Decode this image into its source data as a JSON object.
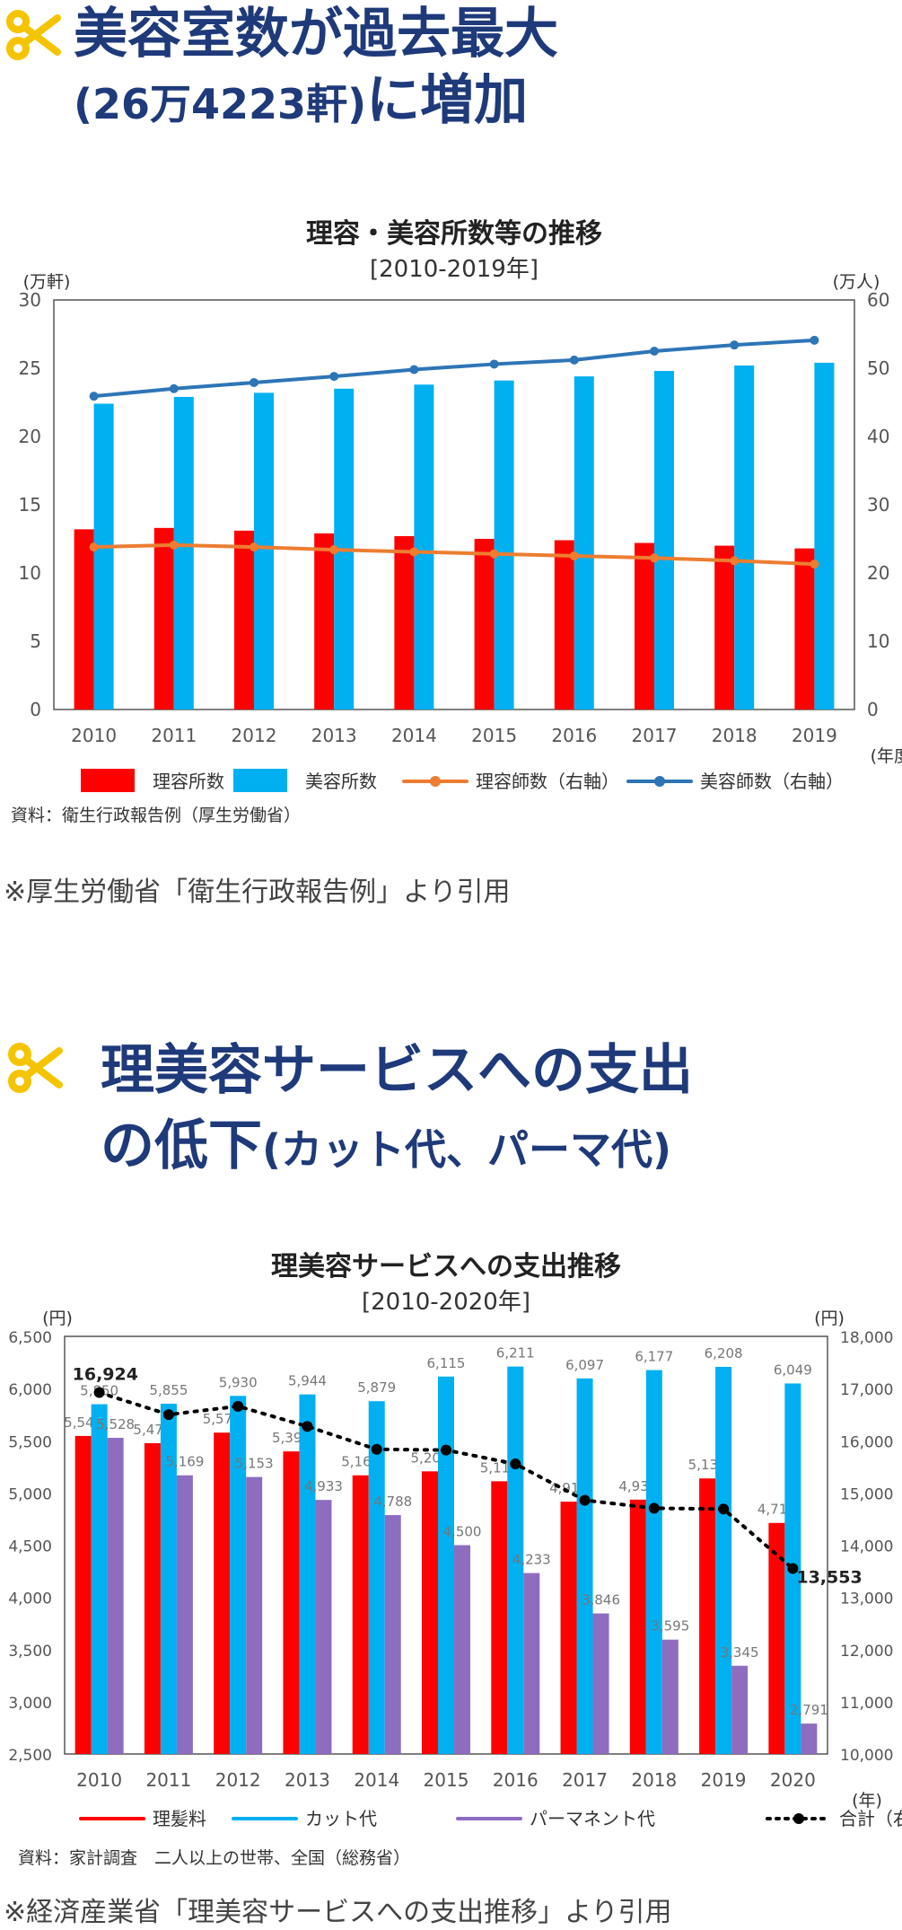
{
  "section1": {
    "title_line1": "美容室数が過去最大",
    "title_line2_paren": "(26万4223軒)",
    "title_line2_rest": "に増加",
    "note": "※厚生労働省「衛生行政報告例」より引用"
  },
  "section2": {
    "title_line1": "理美容サービスへの支出",
    "title_line2_main": "の低下",
    "title_line2_paren": "(カット代、パーマ代)",
    "note": "※経済産業省「理美容サービスへの支出推移」より引用"
  },
  "colors": {
    "heading": "#1f3a7a",
    "scissors": "#f5c400",
    "red": "#ff0000",
    "cyan": "#00b0f0",
    "purple": "#8e6cc0",
    "orange": "#ed7d31",
    "blue": "#2e75b6"
  },
  "chart_data": [
    {
      "type": "bar",
      "title": "理容・美容所数等の推移",
      "subtitle": "[2010-2019年]",
      "left_axis_unit": "(万軒)",
      "right_axis_unit": "(万人)",
      "x_unit": "(年度)",
      "categories": [
        "2010",
        "2011",
        "2012",
        "2013",
        "2014",
        "2015",
        "2016",
        "2017",
        "2018",
        "2019"
      ],
      "ylim_left": [
        0,
        30
      ],
      "ylim_right": [
        0,
        60
      ],
      "yticks_left": [
        "0",
        "5",
        "10",
        "15",
        "20",
        "25",
        "30"
      ],
      "yticks_right": [
        "0",
        "10",
        "20",
        "30",
        "40",
        "50",
        "60"
      ],
      "series": [
        {
          "name": "理容所数",
          "kind": "bar",
          "axis": "left",
          "color": "#ff0000",
          "values": [
            13.2,
            13.3,
            13.1,
            12.9,
            12.7,
            12.5,
            12.4,
            12.2,
            12.0,
            11.8
          ]
        },
        {
          "name": "美容所数",
          "kind": "bar",
          "axis": "left",
          "color": "#00b0f0",
          "values": [
            22.4,
            22.9,
            23.2,
            23.5,
            23.8,
            24.1,
            24.4,
            24.8,
            25.2,
            25.4
          ]
        },
        {
          "name": "理容師数（右軸）",
          "kind": "line",
          "axis": "right",
          "color": "#ed7d31",
          "values": [
            23.8,
            24.1,
            23.8,
            23.4,
            23.1,
            22.8,
            22.5,
            22.2,
            21.8,
            21.3
          ]
        },
        {
          "name": "美容師数（右軸）",
          "kind": "line",
          "axis": "right",
          "color": "#2e75b6",
          "values": [
            45.9,
            47.0,
            47.9,
            48.8,
            49.8,
            50.6,
            51.2,
            52.5,
            53.4,
            54.1
          ]
        }
      ],
      "source": "資料：衛生行政報告例（厚生労働省）"
    },
    {
      "type": "bar",
      "title": "理美容サービスへの支出推移",
      "subtitle": "[2010-2020年]",
      "left_axis_unit": "(円)",
      "right_axis_unit": "(円)",
      "x_unit": "(年)",
      "categories": [
        "2010",
        "2011",
        "2012",
        "2013",
        "2014",
        "2015",
        "2016",
        "2017",
        "2018",
        "2019",
        "2020"
      ],
      "ylim_left": [
        2500,
        6500
      ],
      "ylim_right": [
        10000,
        18000
      ],
      "yticks_left": [
        "2,500",
        "3,000",
        "3,500",
        "4,000",
        "4,500",
        "5,000",
        "5,500",
        "6,000",
        "6,500"
      ],
      "yticks_right": [
        "10,000",
        "11,000",
        "12,000",
        "13,000",
        "14,000",
        "15,000",
        "16,000",
        "17,000",
        "18,000"
      ],
      "series": [
        {
          "name": "理髪料",
          "kind": "bar",
          "axis": "left",
          "color": "#ff0000",
          "values": [
            5546,
            5477,
            5578,
            5398,
            5169,
            5207,
            5112,
            4917,
            4936,
            5139,
            4713
          ],
          "labels": [
            "5,546",
            "5,477",
            "5,578",
            "5,398",
            "5,169",
            "5,207",
            "5,112",
            "4,917",
            "4,936",
            "5,139",
            "4,713"
          ]
        },
        {
          "name": "カット代",
          "kind": "bar",
          "axis": "left",
          "color": "#00b0f0",
          "values": [
            5850,
            5855,
            5930,
            5944,
            5879,
            6115,
            6211,
            6097,
            6177,
            6208,
            6049
          ],
          "labels": [
            "5,850",
            "5,855",
            "5,930",
            "5,944",
            "5,879",
            "6,115",
            "6,211",
            "6,097",
            "6,177",
            "6,208",
            "6,049"
          ]
        },
        {
          "name": "パーマネント代",
          "kind": "bar",
          "axis": "left",
          "color": "#8e6cc0",
          "values": [
            5528,
            5169,
            5153,
            4933,
            4788,
            4500,
            4233,
            3846,
            3595,
            3345,
            2791
          ],
          "labels": [
            "5,528",
            "5,169",
            "5,153",
            "4,933",
            "4,788",
            "4,500",
            "4,233",
            "3,846",
            "3,595",
            "3,345",
            "2,791"
          ]
        },
        {
          "name": "合計（右軸）",
          "kind": "line",
          "axis": "right",
          "color": "#000000",
          "values": [
            16924,
            16501,
            16661,
            16275,
            15836,
            15822,
            15556,
            14860,
            14708,
            14692,
            13553
          ]
        }
      ],
      "total_first_label": "16,924",
      "total_last_label": "13,553",
      "source": "資料：家計調査　二人以上の世帯、全国（総務省）"
    }
  ]
}
